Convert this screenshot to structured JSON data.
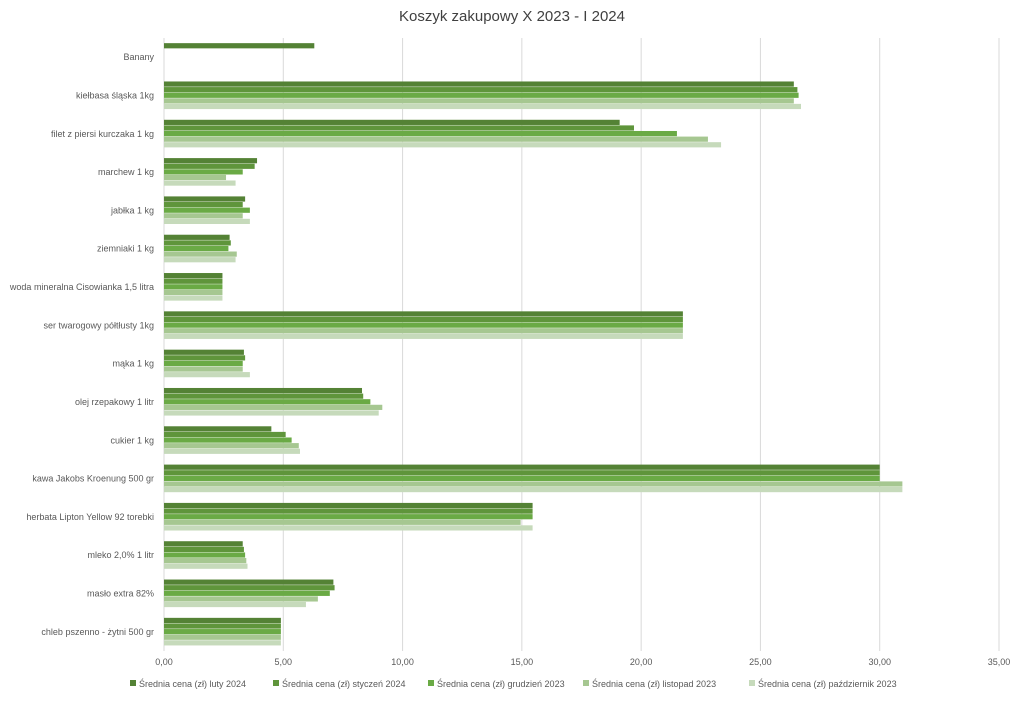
{
  "chart_data": {
    "type": "bar",
    "orientation": "horizontal",
    "title": "Koszyk zakupowy X 2023 - I 2024",
    "xlabel": "",
    "ylabel": "",
    "xlim": [
      0,
      35
    ],
    "x_ticks": [
      "0,00",
      "5,00",
      "10,00",
      "15,00",
      "20,00",
      "25,00",
      "30,00",
      "35,00"
    ],
    "grid": true,
    "legend_position": "bottom",
    "categories": [
      "Banany",
      "kiełbasa śląska 1kg",
      "filet z piersi kurczaka 1 kg",
      "marchew 1 kg",
      "jabłka 1 kg",
      "ziemniaki 1 kg",
      "woda mineralna Cisowianka 1,5 litra",
      "ser twarogowy półtłusty 1kg",
      "mąka 1 kg",
      "olej rzepakowy 1 litr",
      "cukier 1 kg",
      "kawa Jakobs Kroenung 500 gr",
      "herbata Lipton Yellow 92 torebki",
      "mleko 2,0% 1 litr",
      "masło extra 82%",
      "chleb pszenno - żytni 500 gr"
    ],
    "series": [
      {
        "name": "Średnia cena (zł) luty 2024",
        "color": "#548235",
        "values": [
          6.3,
          26.4,
          19.1,
          3.9,
          3.4,
          2.75,
          2.45,
          21.75,
          3.35,
          8.3,
          4.5,
          30.0,
          15.45,
          3.3,
          7.1,
          4.9
        ]
      },
      {
        "name": "Średnia cena (zł) styczeń 2024",
        "color": "#5f953b",
        "values": [
          null,
          26.55,
          19.7,
          3.8,
          3.3,
          2.8,
          2.45,
          21.75,
          3.4,
          8.35,
          5.1,
          30.0,
          15.45,
          3.35,
          7.15,
          4.9
        ]
      },
      {
        "name": "Średnia cena (zł) grudzień 2023",
        "color": "#6aaa45",
        "values": [
          null,
          26.6,
          21.5,
          3.3,
          3.6,
          2.7,
          2.45,
          21.75,
          3.3,
          8.65,
          5.35,
          30.0,
          15.45,
          3.4,
          6.95,
          4.9
        ]
      },
      {
        "name": "Średnia cena (zł) listopad 2023",
        "color": "#a6c791",
        "values": [
          null,
          26.4,
          22.8,
          2.6,
          3.3,
          3.05,
          2.45,
          21.75,
          3.3,
          9.15,
          5.65,
          30.95,
          14.95,
          3.45,
          6.45,
          4.9
        ]
      },
      {
        "name": "Średnia cena (zł) październik 2023",
        "color": "#c6dabb",
        "values": [
          null,
          26.7,
          23.35,
          3.0,
          3.6,
          3.0,
          2.45,
          21.75,
          3.6,
          9.0,
          5.7,
          30.95,
          15.45,
          3.5,
          5.95,
          4.9
        ]
      }
    ]
  }
}
